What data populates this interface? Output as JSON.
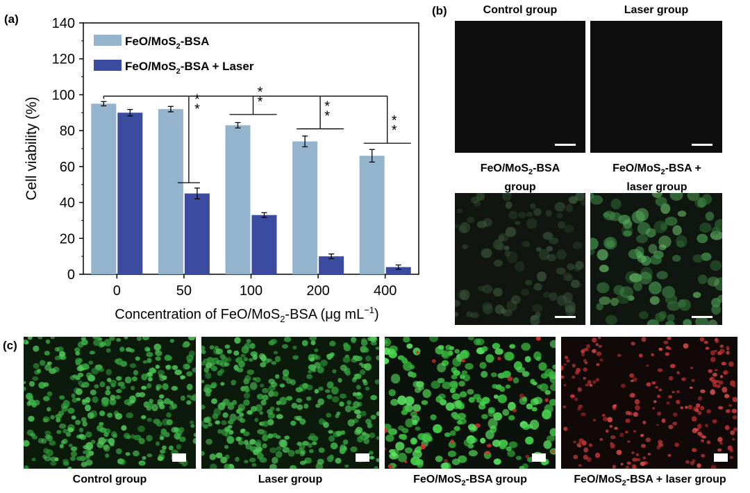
{
  "panels": {
    "a": "(a)",
    "b": "(b)",
    "c": "(c)"
  },
  "chart_data": {
    "type": "bar",
    "categories": [
      "0",
      "50",
      "100",
      "200",
      "400"
    ],
    "xlabel_main": "Concentration of FeO/MoS",
    "xlabel_sub": "2",
    "xlabel_rest": "-BSA (μg mL",
    "xlabel_sup": "−1",
    "xlabel_end": ")",
    "ylabel": "Cell viability (%)",
    "ylim": [
      0,
      140
    ],
    "yticks": [
      0,
      20,
      40,
      60,
      80,
      100,
      120,
      140
    ],
    "series": [
      {
        "name": "FeO/MoS2-BSA",
        "values": [
          95,
          92,
          83,
          74,
          66
        ],
        "errors": [
          1.2,
          1.5,
          1.5,
          3.0,
          3.5
        ],
        "color": "#93b4cc"
      },
      {
        "name": "FeO/MoS2-BSA + Laser",
        "values": [
          90,
          45,
          33,
          10,
          4
        ],
        "errors": [
          1.8,
          3.0,
          1.3,
          1.3,
          1.2
        ],
        "color": "#3a4ba0"
      }
    ],
    "legend": [
      {
        "pre": "FeO/MoS",
        "sub": "2",
        "post": "-BSA"
      },
      {
        "pre": "FeO/MoS",
        "sub": "2",
        "post": "-BSA + Laser"
      }
    ],
    "legend_position": "top-left",
    "significance": "* *",
    "grid": false
  },
  "panel_b": {
    "captions": {
      "control": "Control group",
      "laser": "Laser group",
      "feo_line1_pre": "FeO/MoS",
      "feo_line1_sub": "2",
      "feo_line1_post": "-BSA",
      "feo_line2": "group",
      "feolaser_line1_pre": "FeO/MoS",
      "feolaser_line1_sub": "2",
      "feolaser_line1_post": "-BSA +",
      "feolaser_line2": "laser group"
    }
  },
  "panel_c": {
    "captions": {
      "control": "Control group",
      "laser": "Laser group",
      "feo_pre": "FeO/MoS",
      "feo_sub": "2",
      "feo_post": "-BSA group",
      "feolaser_pre": "FeO/MoS",
      "feolaser_sub": "2",
      "feolaser_post": "-BSA + laser group"
    }
  }
}
